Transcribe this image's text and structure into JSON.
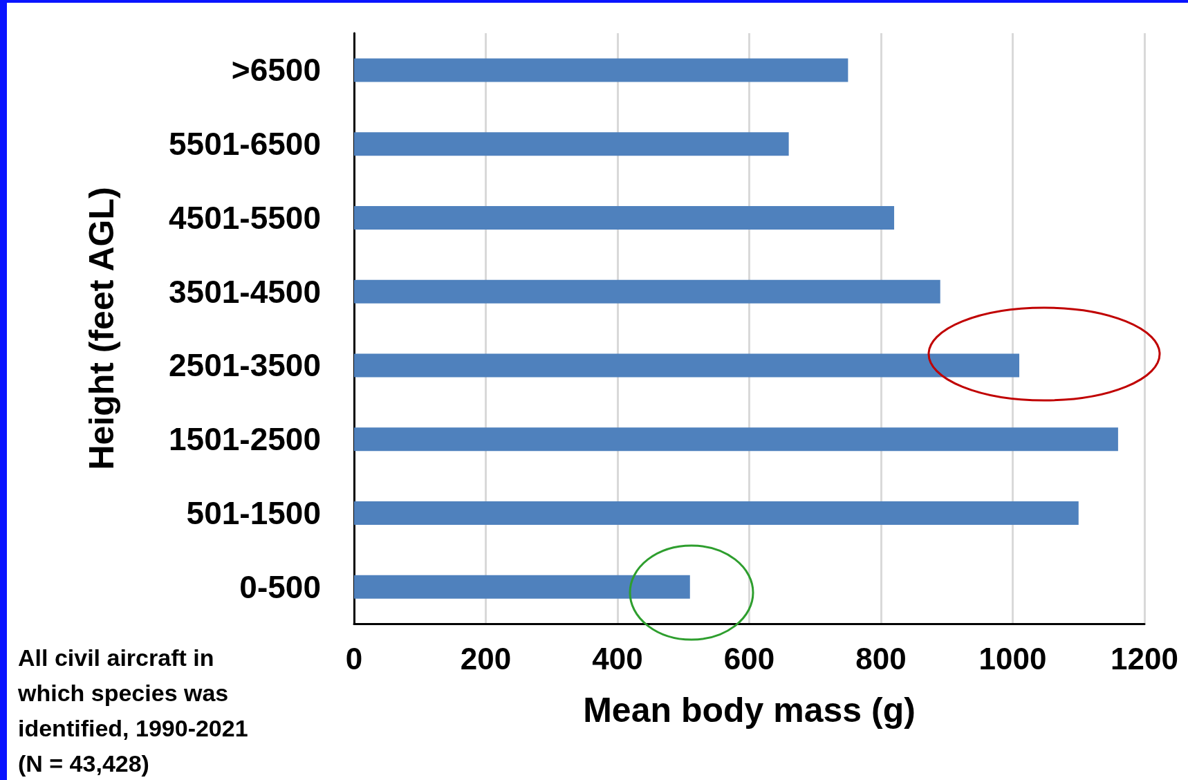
{
  "chart_data": {
    "type": "bar",
    "orientation": "horizontal",
    "xlabel": "Mean body mass (g)",
    "ylabel": "Height (feet AGL)",
    "categories": [
      ">6500",
      "5501-6500",
      "4501-5500",
      "3501-4500",
      "2501-3500",
      "1501-2500",
      "501-1500",
      "0-500"
    ],
    "values": [
      750,
      660,
      820,
      890,
      1010,
      1160,
      1100,
      510
    ],
    "color": "#4f81bd",
    "xlim": [
      0,
      1200
    ],
    "xticks": [
      0,
      200,
      400,
      600,
      800,
      1000,
      1200
    ],
    "grid": "x",
    "annotations": [
      "All civil aircraft in which species was identified, 1990-2021 (N = 43,428)"
    ]
  }
}
